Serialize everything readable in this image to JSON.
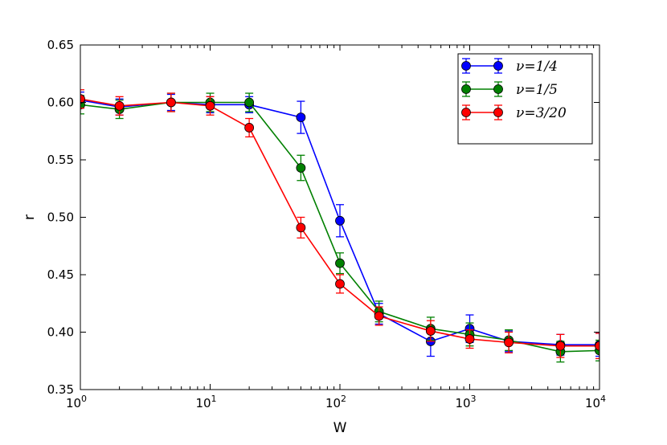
{
  "chart_data": {
    "type": "line",
    "title": "",
    "xlabel": "W",
    "ylabel": "r",
    "xscale": "log",
    "xlim": [
      1,
      10000
    ],
    "ylim": [
      0.35,
      0.65
    ],
    "x_ticks": [
      {
        "value": 1,
        "base": "10",
        "exp": "0"
      },
      {
        "value": 10,
        "base": "10",
        "exp": "1"
      },
      {
        "value": 100,
        "base": "10",
        "exp": "2"
      },
      {
        "value": 1000,
        "base": "10",
        "exp": "3"
      },
      {
        "value": 10000,
        "base": "10",
        "exp": "4"
      }
    ],
    "y_ticks": [
      {
        "value": 0.35,
        "label": "0.35"
      },
      {
        "value": 0.4,
        "label": "0.40"
      },
      {
        "value": 0.45,
        "label": "0.45"
      },
      {
        "value": 0.5,
        "label": "0.50"
      },
      {
        "value": 0.55,
        "label": "0.55"
      },
      {
        "value": 0.6,
        "label": "0.60"
      },
      {
        "value": 0.65,
        "label": "0.65"
      }
    ],
    "legend_position": "top-right",
    "series": [
      {
        "name": "ν=1/4",
        "color": "#0000ff",
        "x": [
          1,
          2,
          5,
          10,
          20,
          50,
          100,
          200,
          500,
          1000,
          2000,
          5000,
          10000
        ],
        "y": [
          0.602,
          0.596,
          0.6,
          0.598,
          0.598,
          0.587,
          0.497,
          0.416,
          0.392,
          0.403,
          0.392,
          0.389,
          0.389
        ],
        "err": [
          0.007,
          0.007,
          0.007,
          0.007,
          0.007,
          0.014,
          0.014,
          0.009,
          0.013,
          0.012,
          0.009,
          0.009,
          0.01
        ]
      },
      {
        "name": "ν=1/5",
        "color": "#008000",
        "x": [
          1,
          2,
          5,
          10,
          20,
          50,
          100,
          200,
          500,
          1000,
          2000,
          5000,
          10000
        ],
        "y": [
          0.598,
          0.594,
          0.6,
          0.6,
          0.6,
          0.543,
          0.46,
          0.418,
          0.403,
          0.398,
          0.393,
          0.383,
          0.384
        ],
        "err": [
          0.008,
          0.008,
          0.008,
          0.008,
          0.008,
          0.011,
          0.009,
          0.009,
          0.01,
          0.01,
          0.009,
          0.009,
          0.009
        ]
      },
      {
        "name": "ν=3/20",
        "color": "#ff0000",
        "x": [
          1,
          2,
          5,
          10,
          20,
          50,
          100,
          200,
          500,
          1000,
          2000,
          5000,
          10000
        ],
        "y": [
          0.603,
          0.597,
          0.6,
          0.597,
          0.578,
          0.491,
          0.442,
          0.414,
          0.401,
          0.394,
          0.391,
          0.388,
          0.388
        ],
        "err": [
          0.008,
          0.008,
          0.008,
          0.008,
          0.008,
          0.009,
          0.008,
          0.008,
          0.009,
          0.008,
          0.009,
          0.01,
          0.011
        ]
      }
    ]
  }
}
